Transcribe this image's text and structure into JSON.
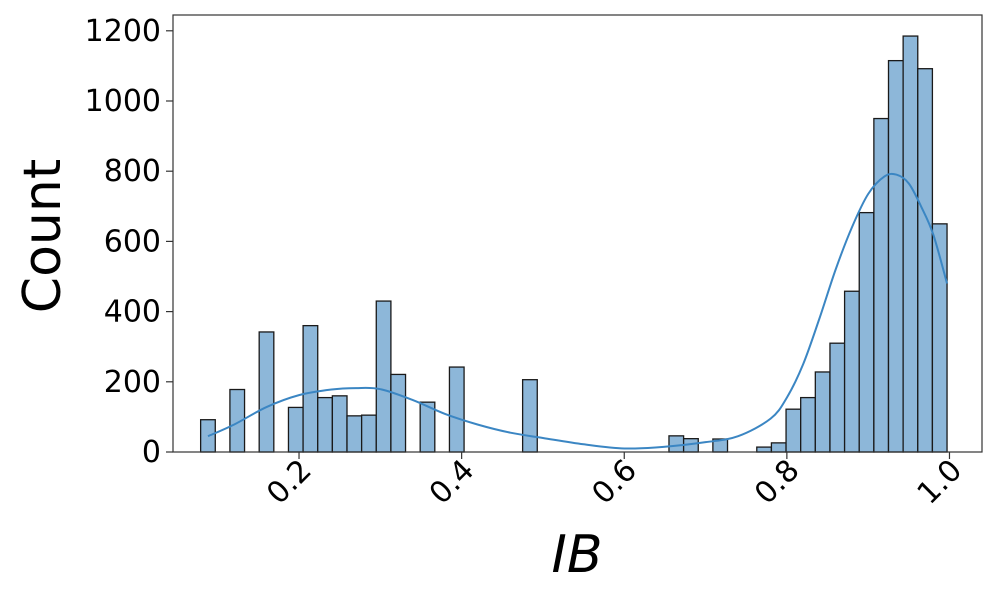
{
  "chart_data": {
    "type": "bar",
    "subtype": "histogram-with-kde",
    "title": "",
    "xlabel": "IB",
    "ylabel": "Count",
    "xlim": [
      0.045,
      1.04
    ],
    "ylim": [
      0,
      1245
    ],
    "bin_width": 0.018,
    "bar_color": "#8db7d9",
    "edge_color": "#1a1a1a",
    "kde_color": "#3b86c3",
    "x_ticks": [
      0.2,
      0.4,
      0.6,
      0.8,
      1.0
    ],
    "x_tick_labels": [
      "0.2",
      "0.4",
      "0.6",
      "0.8",
      "1.0"
    ],
    "y_ticks": [
      0,
      200,
      400,
      600,
      800,
      1000,
      1200
    ],
    "y_tick_labels": [
      "0",
      "200",
      "400",
      "600",
      "800",
      "1000",
      "1200"
    ],
    "bins": [
      {
        "x": 0.088,
        "count": 92
      },
      {
        "x": 0.124,
        "count": 178
      },
      {
        "x": 0.16,
        "count": 342
      },
      {
        "x": 0.196,
        "count": 127
      },
      {
        "x": 0.214,
        "count": 360
      },
      {
        "x": 0.232,
        "count": 155
      },
      {
        "x": 0.25,
        "count": 160
      },
      {
        "x": 0.268,
        "count": 103
      },
      {
        "x": 0.286,
        "count": 105
      },
      {
        "x": 0.304,
        "count": 430
      },
      {
        "x": 0.322,
        "count": 221
      },
      {
        "x": 0.358,
        "count": 142
      },
      {
        "x": 0.394,
        "count": 242
      },
      {
        "x": 0.484,
        "count": 206
      },
      {
        "x": 0.664,
        "count": 46
      },
      {
        "x": 0.682,
        "count": 38
      },
      {
        "x": 0.718,
        "count": 37
      },
      {
        "x": 0.772,
        "count": 14
      },
      {
        "x": 0.79,
        "count": 26
      },
      {
        "x": 0.808,
        "count": 122
      },
      {
        "x": 0.826,
        "count": 155
      },
      {
        "x": 0.844,
        "count": 228
      },
      {
        "x": 0.862,
        "count": 310
      },
      {
        "x": 0.88,
        "count": 458
      },
      {
        "x": 0.898,
        "count": 682
      },
      {
        "x": 0.916,
        "count": 950
      },
      {
        "x": 0.934,
        "count": 1115
      },
      {
        "x": 0.952,
        "count": 1185
      },
      {
        "x": 0.97,
        "count": 1092
      },
      {
        "x": 0.988,
        "count": 650
      }
    ],
    "kde": {
      "x": [
        0.088,
        0.12,
        0.16,
        0.2,
        0.24,
        0.27,
        0.3,
        0.34,
        0.38,
        0.42,
        0.46,
        0.5,
        0.55,
        0.6,
        0.65,
        0.7,
        0.74,
        0.78,
        0.8,
        0.82,
        0.84,
        0.86,
        0.88,
        0.9,
        0.92,
        0.935,
        0.95,
        0.965,
        0.98,
        0.997
      ],
      "y": [
        45,
        78,
        128,
        162,
        178,
        182,
        179,
        148,
        108,
        78,
        55,
        40,
        22,
        10,
        15,
        28,
        45,
        95,
        155,
        250,
        380,
        520,
        640,
        735,
        785,
        790,
        765,
        700,
        620,
        480
      ]
    }
  }
}
